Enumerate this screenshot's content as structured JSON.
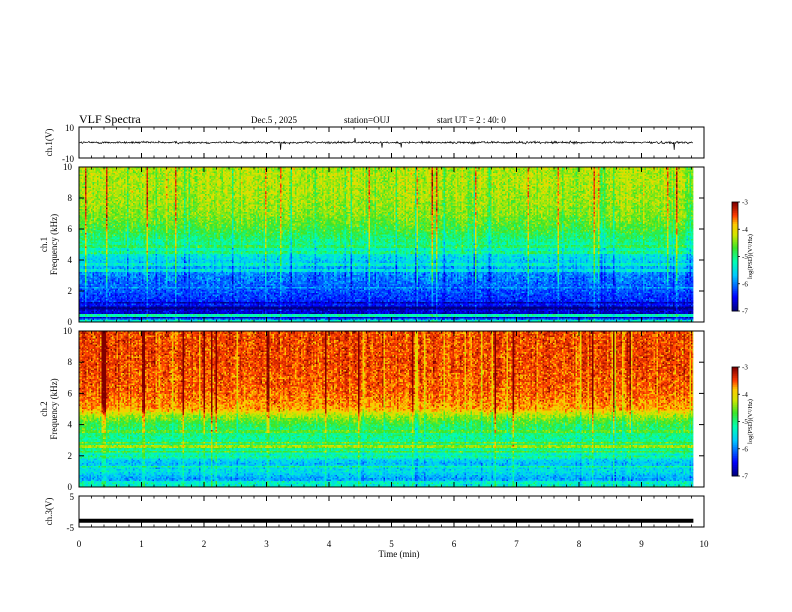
{
  "header": {
    "title": "VLF Spectra",
    "date": "Dec.5 , 2025",
    "station": "station=OUJ",
    "start": "start UT =  2 : 40: 0"
  },
  "chart_data": [
    {
      "type": "line",
      "id": "ch1-waveform",
      "ylabel": "ch.1(V)",
      "ylim": [
        -10,
        10
      ],
      "yticks": [
        "10",
        "-10"
      ],
      "xlim": [
        0,
        10
      ],
      "baseline": 0,
      "noise_amplitude": 1.2,
      "spike_amplitude": 4.5
    },
    {
      "type": "heatmap",
      "id": "ch1-spectrogram",
      "ylabel": "ch.1\nFrequency (kHz)",
      "ylim": [
        0,
        10
      ],
      "yticks": [
        "0",
        "2",
        "4",
        "6",
        "8",
        "10"
      ],
      "xlim": [
        0,
        9.83
      ],
      "colorbar": {
        "label": "log(PSD)(V²/Hz)",
        "range": [
          -7,
          -3
        ],
        "ticks": [
          "-3",
          "-4",
          "-5",
          "-6",
          "-7"
        ]
      },
      "profile": [
        {
          "f": 0.0,
          "v": -4.8
        },
        {
          "f": 0.3,
          "v": -6.9
        },
        {
          "f": 0.8,
          "v": -6.6
        },
        {
          "f": 1.2,
          "v": -6.4
        },
        {
          "f": 2.0,
          "v": -6.2
        },
        {
          "f": 3.0,
          "v": -6.0
        },
        {
          "f": 4.0,
          "v": -5.6
        },
        {
          "f": 5.0,
          "v": -5.1
        },
        {
          "f": 6.0,
          "v": -4.7
        },
        {
          "f": 7.0,
          "v": -4.45
        },
        {
          "f": 8.0,
          "v": -4.35
        },
        {
          "f": 9.0,
          "v": -4.3
        },
        {
          "f": 10.0,
          "v": -4.3
        }
      ]
    },
    {
      "type": "heatmap",
      "id": "ch2-spectrogram",
      "ylabel": "ch.2\nFrequency (kHz)",
      "ylim": [
        0,
        10
      ],
      "yticks": [
        "0",
        "2",
        "4",
        "6",
        "8",
        "10"
      ],
      "xlim": [
        0,
        9.83
      ],
      "colorbar": {
        "label": "log(PSD)(V²/Hz)",
        "range": [
          -7,
          -3
        ],
        "ticks": [
          "-3",
          "-4",
          "-5",
          "-6",
          "-7"
        ]
      },
      "profile": [
        {
          "f": 0.0,
          "v": -5.2
        },
        {
          "f": 0.5,
          "v": -5.9
        },
        {
          "f": 1.0,
          "v": -5.5
        },
        {
          "f": 1.5,
          "v": -5.7
        },
        {
          "f": 2.0,
          "v": -5.4
        },
        {
          "f": 2.6,
          "v": -4.9
        },
        {
          "f": 3.0,
          "v": -5.1
        },
        {
          "f": 3.5,
          "v": -5.0
        },
        {
          "f": 4.0,
          "v": -4.8
        },
        {
          "f": 4.6,
          "v": -4.3
        },
        {
          "f": 5.0,
          "v": -3.75
        },
        {
          "f": 6.0,
          "v": -3.55
        },
        {
          "f": 7.0,
          "v": -3.5
        },
        {
          "f": 8.0,
          "v": -3.45
        },
        {
          "f": 9.0,
          "v": -3.45
        },
        {
          "f": 10.0,
          "v": -3.45
        }
      ]
    },
    {
      "type": "line",
      "id": "ch3-waveform",
      "ylabel": "ch.3(V)",
      "ylim": [
        -5,
        5
      ],
      "yticks": [
        "5",
        "-5"
      ],
      "xlim": [
        0,
        10
      ],
      "value": -3
    }
  ],
  "xaxis": {
    "label": "Time (min)",
    "range": [
      0,
      10
    ],
    "ticks": [
      "0",
      "1",
      "2",
      "3",
      "4",
      "5",
      "6",
      "7",
      "8",
      "9",
      "10"
    ]
  }
}
